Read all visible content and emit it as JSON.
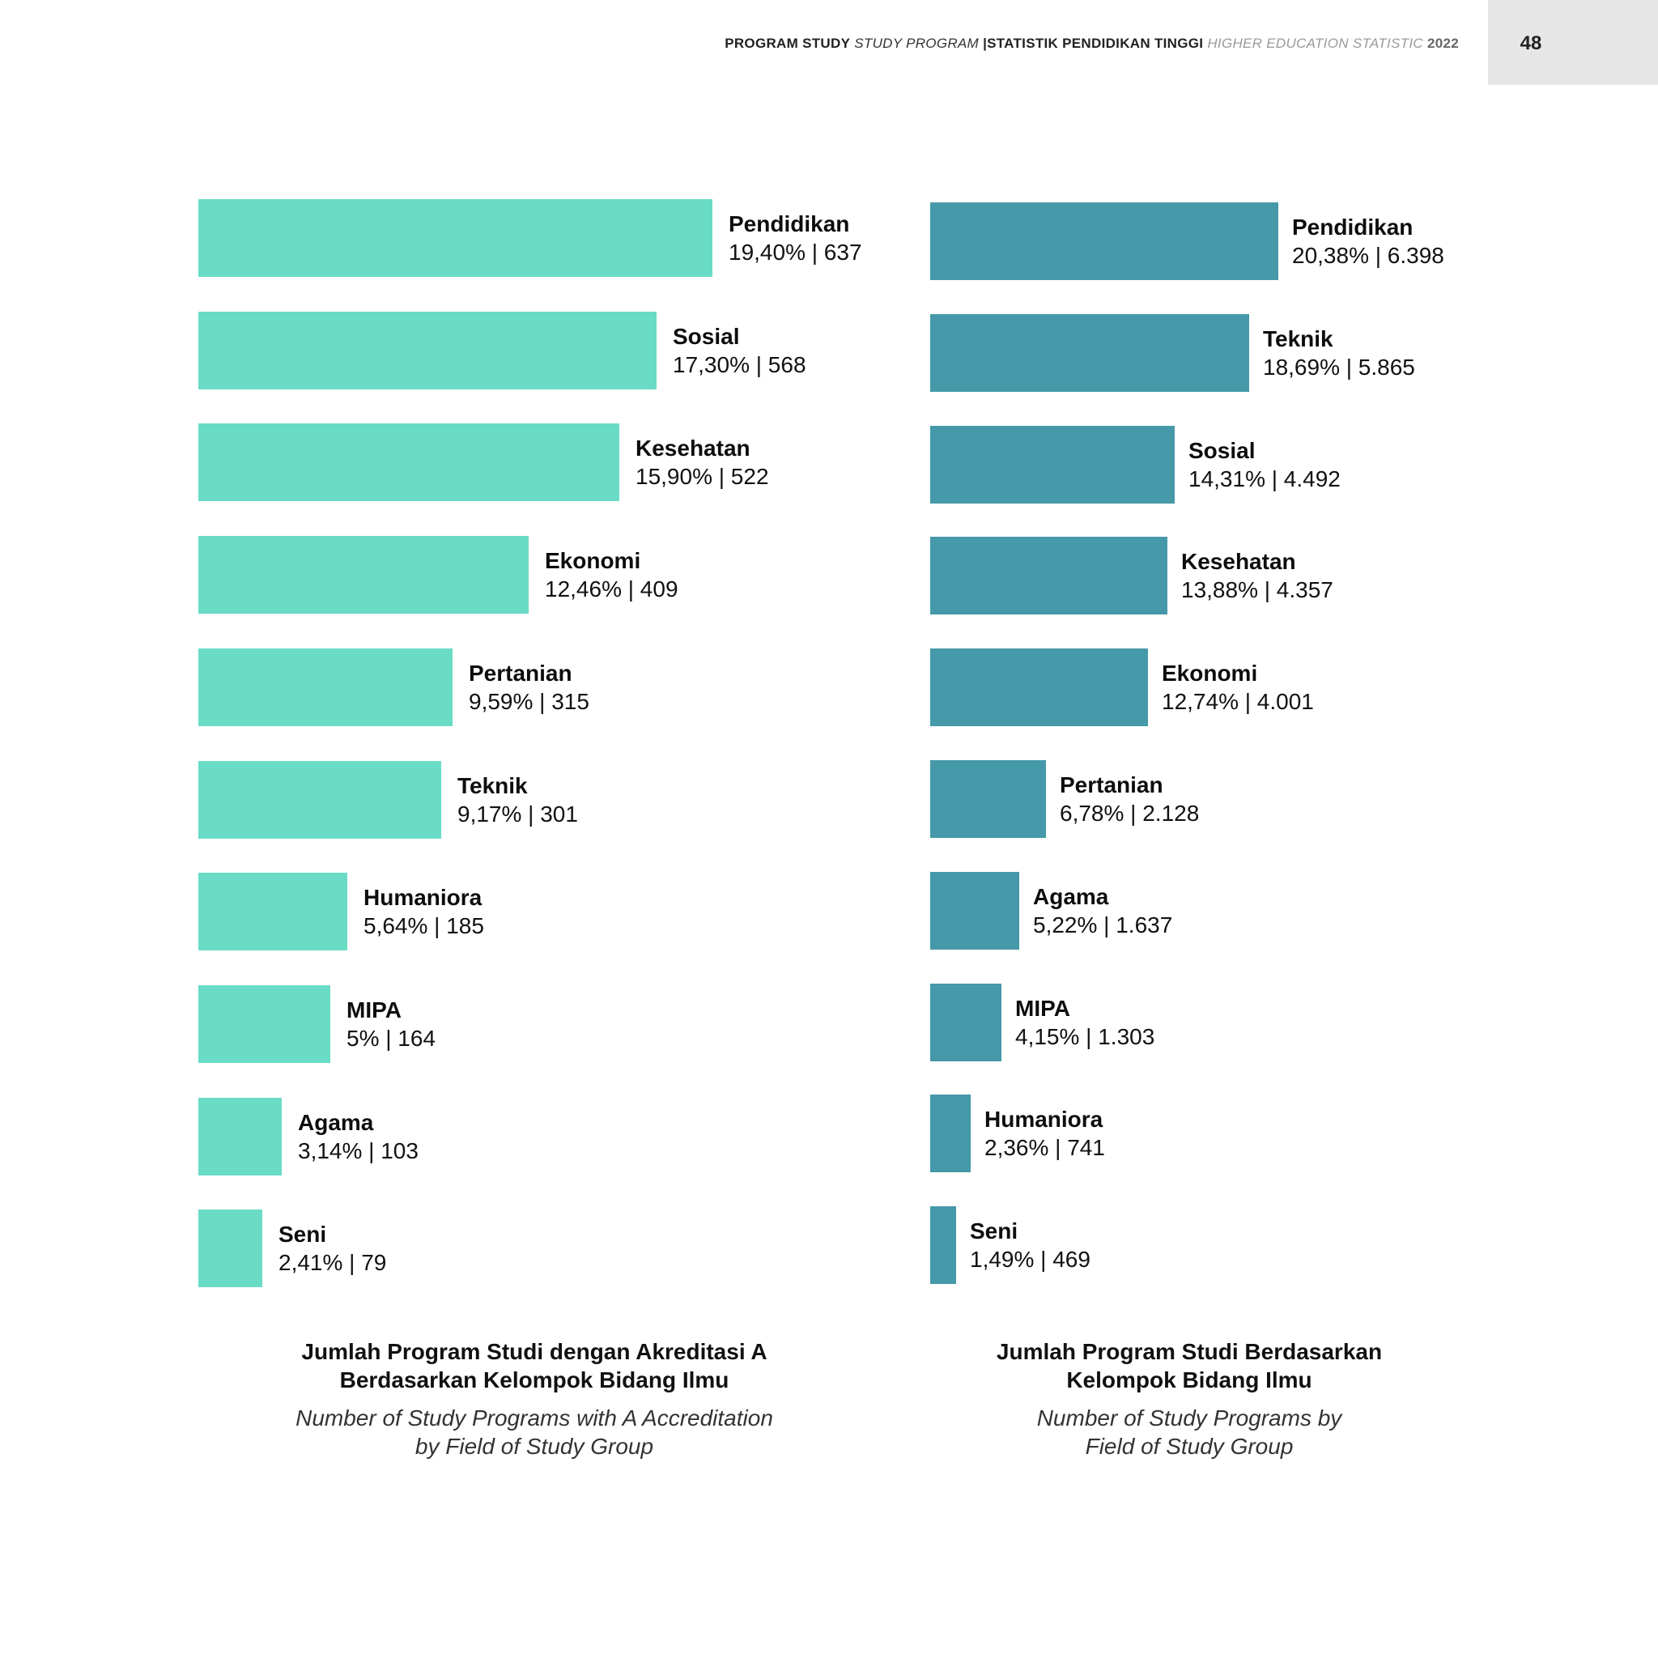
{
  "header": {
    "part1": "PROGRAM STUDY",
    "part2": "STUDY PROGRAM",
    "part3": "|STATISTIK PENDIDIKAN TINGGI",
    "part4": "HIGHER EDUCATION STATISTIC",
    "year": "2022",
    "page_number": "48"
  },
  "colors": {
    "chart_a": "#6adcc5",
    "chart_b": "#4599a8"
  },
  "chart_data": [
    {
      "type": "bar",
      "orientation": "horizontal",
      "title": "Jumlah Program Studi dengan Akreditasi A Berdasarkan Kelompok Bidang Ilmu",
      "title_line1": "Jumlah Program Studi dengan Akreditasi A",
      "title_line2": "Berdasarkan Kelompok Bidang Ilmu",
      "subtitle_line1": "Number of Study Programs with A Accreditation",
      "subtitle_line2": "by Field of Study Group",
      "categories": [
        "Pendidikan",
        "Sosial",
        "Kesehatan",
        "Ekonomi",
        "Pertanian",
        "Teknik",
        "Humaniora",
        "MIPA",
        "Agama",
        "Seni"
      ],
      "values": [
        637,
        568,
        522,
        409,
        315,
        301,
        185,
        164,
        103,
        79
      ],
      "percents": [
        19.4,
        17.3,
        15.9,
        12.46,
        9.59,
        9.17,
        5.64,
        5.0,
        3.14,
        2.41
      ],
      "value_labels": [
        "19,40% | 637",
        "17,30% | 568",
        "15,90% | 522",
        "12,46% | 409",
        "9,59% | 315",
        "9,17% | 301",
        "5,64% | 185",
        "5% | 164",
        "3,14% | 103",
        "2,41% | 79"
      ]
    },
    {
      "type": "bar",
      "orientation": "horizontal",
      "title": "Jumlah Program Studi Berdasarkan Kelompok Bidang Ilmu",
      "title_line1": "Jumlah Program Studi Berdasarkan",
      "title_line2": "Kelompok Bidang Ilmu",
      "subtitle_line1": "Number of Study Programs by",
      "subtitle_line2": "Field of Study Group",
      "categories": [
        "Pendidikan",
        "Teknik",
        "Sosial",
        "Kesehatan",
        "Ekonomi",
        "Pertanian",
        "Agama",
        "MIPA",
        "Humaniora",
        "Seni"
      ],
      "values": [
        6398,
        5865,
        4492,
        4357,
        4001,
        2128,
        1637,
        1303,
        741,
        469
      ],
      "percents": [
        20.38,
        18.69,
        14.31,
        13.88,
        12.74,
        6.78,
        5.22,
        4.15,
        2.36,
        1.49
      ],
      "value_labels": [
        "20,38% | 6.398",
        "18,69% | 5.865",
        "14,31% | 4.492",
        "13,88% | 4.357",
        "12,74% | 4.001",
        "6,78% | 2.128",
        "5,22% | 1.637",
        "4,15% | 1.303",
        "2,36% | 741",
        "1,49% | 469"
      ]
    }
  ]
}
